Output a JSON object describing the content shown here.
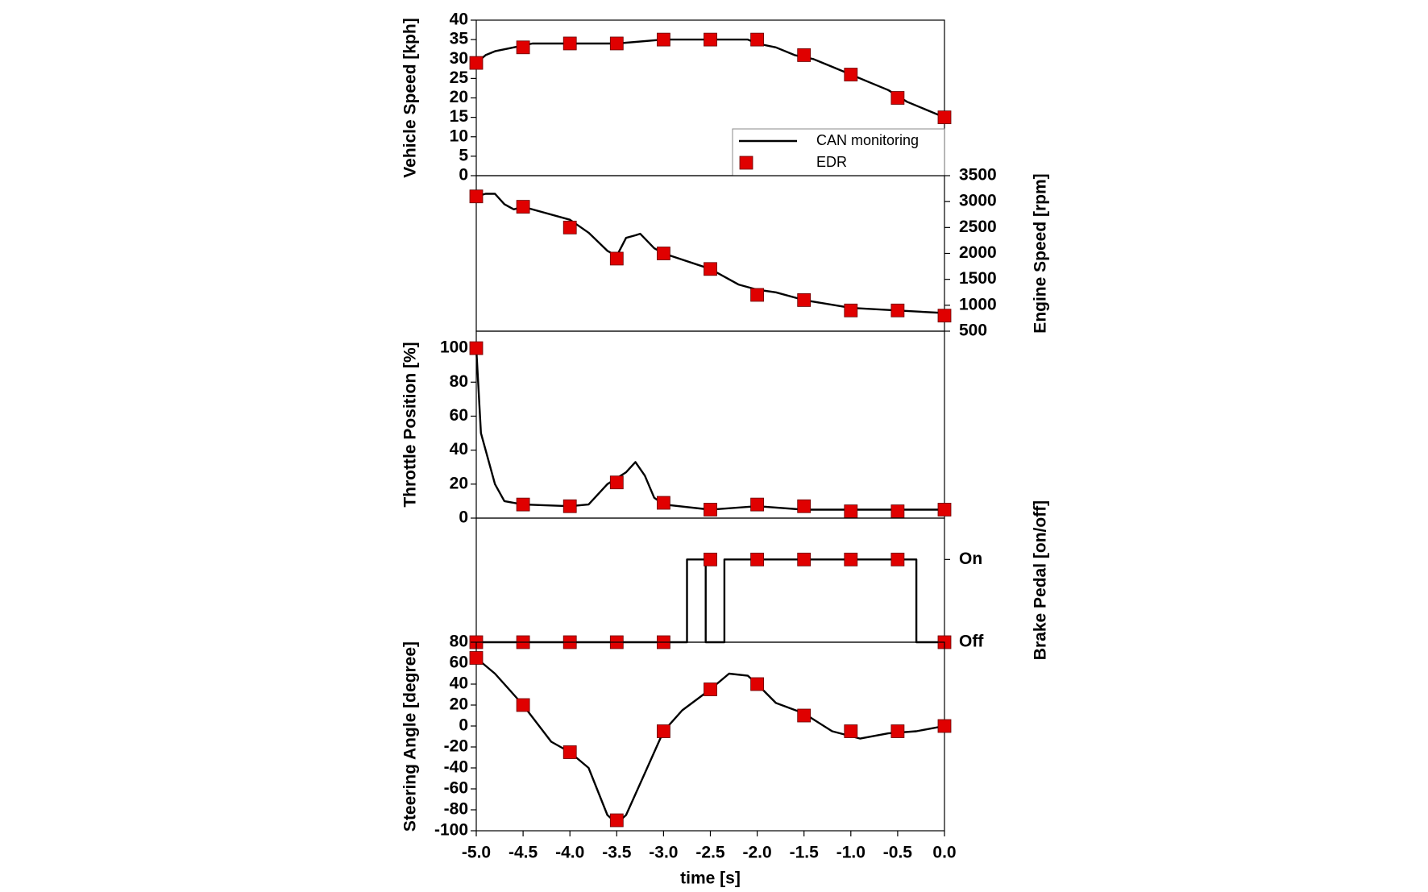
{
  "chart_data": [
    {
      "type": "line",
      "ylabel": "Vehicle Speed [kph]",
      "axis_side": "left",
      "xlim": [
        -5,
        0
      ],
      "ylim": [
        0,
        40
      ],
      "yticks": [
        0,
        5,
        10,
        15,
        20,
        25,
        30,
        35,
        40
      ],
      "legend": "lower right",
      "series": [
        {
          "name": "CAN monitoring",
          "color": "#000000",
          "style": "line",
          "x": [
            -5,
            -4.9,
            -4.8,
            -4.6,
            -4.4,
            -4.0,
            -3.5,
            -3.0,
            -2.5,
            -2.1,
            -2.0,
            -1.8,
            -1.6,
            -1.4,
            -1.2,
            -1.0,
            -0.8,
            -0.6,
            -0.4,
            -0.2,
            0
          ],
          "values": [
            29,
            31,
            32,
            33,
            34,
            34,
            34,
            35,
            35,
            35,
            34,
            33,
            31,
            30,
            28,
            26,
            24,
            22,
            19,
            17,
            15
          ]
        },
        {
          "name": "EDR",
          "color": "#e00000",
          "style": "marker",
          "x": [
            -5,
            -4.5,
            -4,
            -3.5,
            -3,
            -2.5,
            -2,
            -1.5,
            -1,
            -0.5,
            0
          ],
          "values": [
            29,
            33,
            34,
            34,
            35,
            35,
            35,
            31,
            26,
            20,
            15
          ]
        }
      ]
    },
    {
      "type": "line",
      "ylabel": "Engine Speed [rpm]",
      "axis_side": "right",
      "xlim": [
        -5,
        0
      ],
      "ylim": [
        500,
        3500
      ],
      "yticks": [
        500,
        1000,
        1500,
        2000,
        2500,
        3000,
        3500
      ],
      "series": [
        {
          "color": "#000000",
          "style": "line",
          "x": [
            -5,
            -4.9,
            -4.8,
            -4.7,
            -4.6,
            -4.5,
            -4.0,
            -3.8,
            -3.6,
            -3.5,
            -3.4,
            -3.3,
            -3.25,
            -3.1,
            -3.0,
            -2.5,
            -2.2,
            -2.0,
            -1.8,
            -1.5,
            -1.0,
            -0.5,
            0
          ],
          "values": [
            3100,
            3150,
            3150,
            2950,
            2850,
            2900,
            2650,
            2400,
            2050,
            1950,
            2300,
            2350,
            2380,
            2100,
            2000,
            1700,
            1400,
            1300,
            1250,
            1100,
            950,
            900,
            850
          ]
        },
        {
          "color": "#e00000",
          "style": "marker",
          "x": [
            -5,
            -4.5,
            -4,
            -3.5,
            -3,
            -2.5,
            -2,
            -1.5,
            -1,
            -0.5,
            0
          ],
          "values": [
            3100,
            2900,
            2500,
            1900,
            2000,
            1700,
            1200,
            1100,
            900,
            900,
            800
          ]
        }
      ]
    },
    {
      "type": "line",
      "ylabel": "Throttle Position [%]",
      "axis_side": "left",
      "xlim": [
        -5,
        0
      ],
      "ylim": [
        0,
        110
      ],
      "yticks": [
        0,
        20,
        40,
        60,
        80,
        100
      ],
      "series": [
        {
          "color": "#000000",
          "style": "line",
          "x": [
            -5,
            -4.95,
            -4.9,
            -4.8,
            -4.7,
            -4.5,
            -4.0,
            -3.8,
            -3.6,
            -3.4,
            -3.3,
            -3.2,
            -3.1,
            -3.0,
            -2.5,
            -2.0,
            -1.5,
            -1.0,
            -0.5,
            0
          ],
          "values": [
            100,
            50,
            40,
            20,
            10,
            8,
            7,
            8,
            20,
            27,
            33,
            25,
            12,
            8,
            5,
            7,
            5,
            5,
            5,
            5
          ]
        },
        {
          "color": "#e00000",
          "style": "marker",
          "x": [
            -5,
            -4.5,
            -4,
            -3.5,
            -3,
            -2.5,
            -2,
            -1.5,
            -1,
            -0.5,
            0
          ],
          "values": [
            100,
            8,
            7,
            21,
            9,
            5,
            8,
            7,
            4,
            4,
            5
          ]
        }
      ]
    },
    {
      "type": "line",
      "ylabel": "Brake Pedal [on/off]",
      "axis_side": "right",
      "xlim": [
        -5,
        0
      ],
      "ylim": [
        0,
        1.5
      ],
      "yticks": [
        {
          "value": 0,
          "label": "Off"
        },
        {
          "value": 1,
          "label": "On"
        }
      ],
      "series": [
        {
          "color": "#000000",
          "style": "line",
          "x": [
            -5,
            -2.75,
            -2.75,
            -2.55,
            -2.55,
            -2.35,
            -2.35,
            -0.3,
            -0.3,
            0
          ],
          "values": [
            0,
            0,
            1,
            1,
            0,
            0,
            1,
            1,
            0,
            0
          ]
        },
        {
          "color": "#e00000",
          "style": "marker",
          "x": [
            -5,
            -4.5,
            -4,
            -3.5,
            -3,
            -2.5,
            -2,
            -1.5,
            -1,
            -0.5,
            0
          ],
          "values": [
            0,
            0,
            0,
            0,
            0,
            1,
            1,
            1,
            1,
            1,
            0
          ]
        }
      ]
    },
    {
      "type": "line",
      "ylabel": "Steering Angle [degree]",
      "axis_side": "left",
      "xlabel": "time [s]",
      "xlim": [
        -5,
        0
      ],
      "xticks": [
        {
          "value": -5,
          "label": "-5.0"
        },
        {
          "value": -4.5,
          "label": "-4.5"
        },
        {
          "value": -4,
          "label": "-4.0"
        },
        {
          "value": -3.5,
          "label": "-3.5"
        },
        {
          "value": -3,
          "label": "-3.0"
        },
        {
          "value": -2.5,
          "label": "-2.5"
        },
        {
          "value": -2,
          "label": "-2.0"
        },
        {
          "value": -1.5,
          "label": "-1.5"
        },
        {
          "value": -1,
          "label": "-1.0"
        },
        {
          "value": -0.5,
          "label": "-0.5"
        },
        {
          "value": 0,
          "label": "0.0"
        }
      ],
      "ylim": [
        -100,
        80
      ],
      "yticks": [
        -100,
        -80,
        -60,
        -40,
        -20,
        0,
        20,
        40,
        60,
        80
      ],
      "series": [
        {
          "color": "#000000",
          "style": "line",
          "x": [
            -5,
            -4.8,
            -4.5,
            -4.2,
            -4.0,
            -3.8,
            -3.6,
            -3.5,
            -3.4,
            -3.2,
            -3.0,
            -2.8,
            -2.5,
            -2.3,
            -2.1,
            -2.0,
            -1.8,
            -1.5,
            -1.2,
            -0.9,
            -0.6,
            -0.3,
            0
          ],
          "values": [
            65,
            50,
            20,
            -15,
            -25,
            -40,
            -85,
            -93,
            -85,
            -45,
            -5,
            15,
            35,
            50,
            48,
            40,
            22,
            12,
            -5,
            -12,
            -7,
            -5,
            0
          ]
        },
        {
          "color": "#e00000",
          "style": "marker",
          "x": [
            -5,
            -4.5,
            -4,
            -3.5,
            -3,
            -2.5,
            -2,
            -1.5,
            -1,
            -0.5,
            0
          ],
          "values": [
            65,
            20,
            -25,
            -90,
            -5,
            35,
            40,
            10,
            -5,
            -5,
            0
          ]
        }
      ]
    }
  ]
}
